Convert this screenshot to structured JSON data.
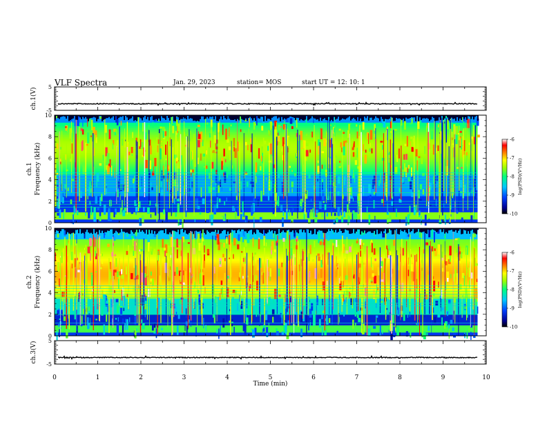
{
  "header": {
    "title": "VLF Spectra",
    "date": "Jan. 29, 2023",
    "station": "station= MOS",
    "start_ut": "start  UT =   12: 10: 1"
  },
  "chart_data": [
    {
      "type": "line",
      "panel": "ch1-waveform",
      "ylabel": "ch.1(V)",
      "ylim": [
        -5,
        5
      ],
      "yticks": [
        "5",
        "-5"
      ],
      "xlim": [
        0,
        10
      ],
      "level": -2.2
    },
    {
      "type": "heatmap",
      "panel": "ch1-spectrogram",
      "ylabel_top": "ch.1",
      "ylabel": "Frequency (kHz)",
      "ylim": [
        0,
        10
      ],
      "yticks": [
        "0",
        "2",
        "4",
        "6",
        "8",
        "10"
      ],
      "xlim": [
        0,
        10
      ],
      "data_end_min": 9.8,
      "colorbar": {
        "label": "log(PSD)(V²/Hz)",
        "range": [
          -10,
          -6
        ],
        "ticks": [
          "-6",
          "-7",
          "-8",
          "-9",
          "-10"
        ]
      }
    },
    {
      "type": "heatmap",
      "panel": "ch2-spectrogram",
      "ylabel_top": "ch.2",
      "ylabel": "Frequency (kHz)",
      "ylim": [
        0,
        10
      ],
      "yticks": [
        "0",
        "2",
        "4",
        "6",
        "8",
        "10"
      ],
      "xlim": [
        0,
        10
      ],
      "data_end_min": 9.8,
      "colorbar": {
        "label": "log(PSD)(V²/Hz)",
        "range": [
          -10,
          -6
        ],
        "ticks": [
          "-6",
          "-7",
          "-8",
          "-9",
          "-10"
        ]
      }
    },
    {
      "type": "line",
      "panel": "ch3-waveform",
      "ylabel": "ch.3(V)",
      "ylim": [
        -5,
        5
      ],
      "yticks": [
        "5",
        "-5"
      ],
      "xlim": [
        0,
        10
      ],
      "level": -2.2,
      "xlabel": "Time  (min)",
      "xticks": [
        "0",
        "1",
        "2",
        "3",
        "4",
        "5",
        "6",
        "7",
        "8",
        "9",
        "10"
      ]
    }
  ]
}
